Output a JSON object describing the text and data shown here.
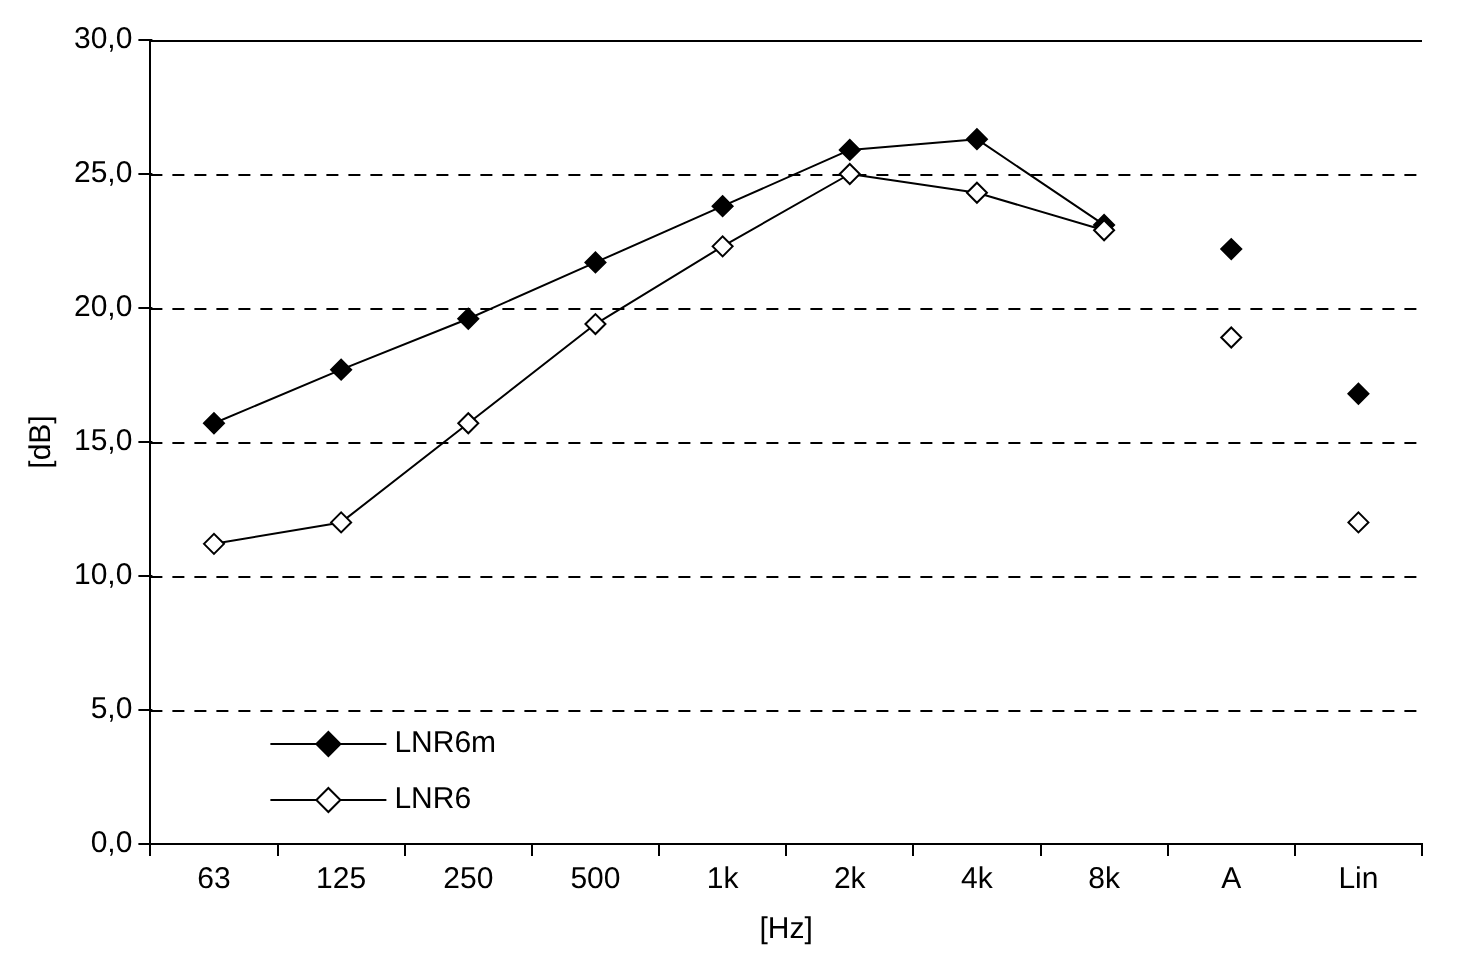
{
  "chart_data": {
    "type": "line",
    "xlabel": "[Hz]",
    "ylabel": "[dB]",
    "categories": [
      "63",
      "125",
      "250",
      "500",
      "1k",
      "2k",
      "4k",
      "8k",
      "A",
      "Lin"
    ],
    "series": [
      {
        "name": "LNR6m",
        "type": "line",
        "color": "#000000",
        "values": [
          15.7,
          17.7,
          19.6,
          21.7,
          23.8,
          25.9,
          26.3,
          23.1,
          null,
          null
        ]
      },
      {
        "name": "LNR6",
        "type": "line",
        "color": "#000000",
        "values": [
          11.2,
          12.0,
          15.7,
          19.4,
          22.3,
          25.0,
          24.3,
          22.9,
          null,
          null
        ]
      },
      {
        "type": "scatter",
        "color": "#000000",
        "x": [
          "A",
          "Lin"
        ],
        "values": [
          22.2,
          16.8
        ]
      },
      {
        "type": "scatter",
        "color": "#000000",
        "x": [
          "A",
          "Lin"
        ],
        "values": [
          18.9,
          12.0
        ]
      }
    ],
    "ylim": [
      0,
      30
    ],
    "yticks": [
      {
        "value": 0,
        "label": "0,0"
      },
      {
        "value": 5,
        "label": "5,0"
      },
      {
        "value": 10,
        "label": "10,0"
      },
      {
        "value": 15,
        "label": "15,0"
      },
      {
        "value": 20,
        "label": "20,0"
      },
      {
        "value": 25,
        "label": "25,0"
      },
      {
        "value": 30,
        "label": "30,0"
      }
    ],
    "grid": "y",
    "legend": "bottom left",
    "marker": "diamond",
    "line_style": "solid"
  }
}
